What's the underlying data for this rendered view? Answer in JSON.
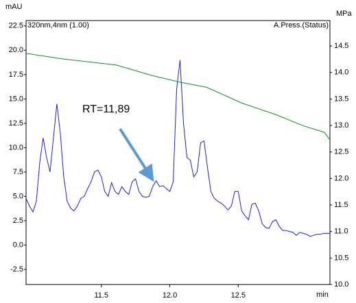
{
  "chart_data": {
    "type": "line",
    "y_label": "mAU",
    "y2_label": "MPa",
    "x_label": "min",
    "annotation": "RT=11,89",
    "annotation_color": "#000000",
    "arrow_color": "#5b9bd5",
    "xlim": [
      10.95,
      13.17
    ],
    "xticks": [
      11.5,
      {
        "value": 12.0,
        "label": "12.0"
      },
      12.5
    ],
    "ylim": [
      -4.05,
      23.05
    ],
    "yticks": [
      {
        "value": -2.5,
        "label": "-2.5"
      },
      {
        "value": 0,
        "label": "0.0"
      },
      2.5,
      {
        "value": 5,
        "label": "5.0"
      },
      7.5,
      {
        "value": 10,
        "label": "10.0"
      },
      12.5,
      {
        "value": 15,
        "label": "15.0"
      },
      17.5,
      {
        "value": 20,
        "label": "20.0"
      },
      22.5
    ],
    "y2lim": [
      10.0,
      14.98
    ],
    "y2ticks": [
      {
        "value": 10,
        "label": "10.0"
      },
      10.5,
      {
        "value": 11,
        "label": "11.0"
      },
      11.5,
      {
        "value": 12,
        "label": "12.0"
      },
      12.5,
      {
        "value": 13,
        "label": "13.0"
      },
      13.5,
      {
        "value": 14,
        "label": "14.0"
      },
      14.5
    ],
    "series": [
      {
        "name": "320nm,4nm (1.00)",
        "color": "#1f1fd0",
        "x": [
          10.95,
          10.975,
          11.0,
          11.025,
          11.05,
          11.075,
          11.1,
          11.125,
          11.15,
          11.175,
          11.2,
          11.225,
          11.25,
          11.275,
          11.3,
          11.325,
          11.35,
          11.375,
          11.4,
          11.425,
          11.45,
          11.475,
          11.5,
          11.525,
          11.55,
          11.575,
          11.6,
          11.625,
          11.65,
          11.675,
          11.7,
          11.725,
          11.75,
          11.775,
          11.8,
          11.825,
          11.85,
          11.875,
          11.9,
          11.925,
          11.95,
          11.975,
          12.0,
          12.025,
          12.05,
          12.075,
          12.1,
          12.125,
          12.15,
          12.175,
          12.2,
          12.225,
          12.25,
          12.275,
          12.3,
          12.325,
          12.35,
          12.375,
          12.4,
          12.425,
          12.45,
          12.475,
          12.5,
          12.525,
          12.55,
          12.575,
          12.6,
          12.625,
          12.65,
          12.675,
          12.7,
          12.725,
          12.75,
          12.775,
          12.8,
          12.825,
          12.85,
          12.875,
          12.9,
          12.925,
          12.95,
          12.975,
          13.0,
          13.025,
          13.05,
          13.075,
          13.1,
          13.125,
          13.15,
          13.17
        ],
        "values": [
          4.8,
          4.0,
          3.4,
          4.5,
          8.5,
          11.0,
          9.0,
          7.5,
          11.0,
          14.5,
          11.5,
          7.0,
          4.5,
          3.8,
          3.5,
          4.0,
          4.8,
          5.0,
          5.8,
          6.5,
          7.5,
          7.7,
          7.0,
          5.5,
          5.0,
          6.4,
          5.5,
          5.2,
          6.0,
          5.5,
          5.2,
          6.5,
          6.8,
          5.5,
          5.0,
          4.9,
          5.0,
          6.0,
          6.6,
          6.0,
          6.1,
          5.8,
          5.5,
          6.5,
          16.0,
          19.0,
          12.5,
          9.0,
          8.7,
          7.0,
          7.5,
          10.5,
          10.7,
          8.0,
          5.5,
          4.8,
          4.5,
          4.3,
          4.0,
          3.6,
          4.0,
          5.5,
          5.5,
          3.5,
          3.0,
          2.6,
          4.2,
          4.3,
          3.5,
          2.2,
          1.8,
          1.7,
          2.4,
          2.6,
          1.9,
          1.5,
          1.5,
          1.4,
          1.3,
          1.0,
          1.3,
          1.2,
          1.1,
          0.9,
          1.0,
          1.1,
          1.1,
          1.2,
          1.2,
          1.2
        ]
      },
      {
        "name": "A.Press.(Status)",
        "color": "#1a8a1a",
        "axis": "y2",
        "x": [
          10.95,
          11.21,
          11.61,
          11.86,
          12.07,
          12.27,
          12.53,
          12.78,
          12.98,
          13.13,
          13.17
        ],
        "values": [
          14.36,
          14.26,
          14.14,
          13.95,
          13.82,
          13.72,
          13.42,
          13.2,
          12.99,
          12.87,
          12.73
        ]
      }
    ]
  }
}
